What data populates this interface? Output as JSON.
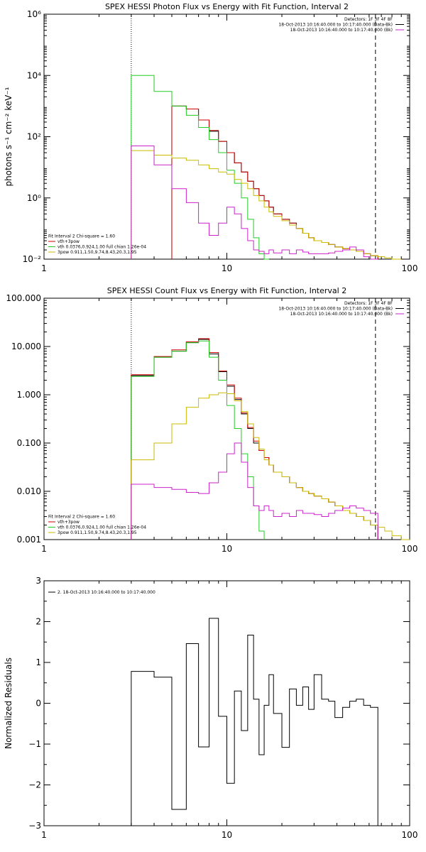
{
  "colors": {
    "black": "#000000",
    "red": "#cc0000",
    "green": "#22cc22",
    "yellow": "#ccbb00",
    "magenta": "#cc22cc"
  },
  "chart_data": [
    {
      "type": "line",
      "id": "photon",
      "title": "SPEX HESSI Photon Flux vs Energy with Fit Function, Interval 2",
      "xlabel": "",
      "ylabel": "photons s⁻¹ cm⁻² keV⁻¹",
      "xscale": "log",
      "yscale": "log",
      "xlim": [
        1,
        100
      ],
      "ylim": [
        0.01,
        1000000
      ],
      "xticks": [
        {
          "v": 1,
          "label": "1"
        },
        {
          "v": 10,
          "label": "10"
        },
        {
          "v": 100,
          "label": "100"
        }
      ],
      "yticks": [
        {
          "v": 0.01,
          "label": "10⁻²"
        },
        {
          "v": 1,
          "label": "10⁰"
        },
        {
          "v": 100,
          "label": "10²"
        },
        {
          "v": 10000,
          "label": "10⁴"
        },
        {
          "v": 1000000,
          "label": "10⁶"
        }
      ],
      "vlines": [
        {
          "x": 3,
          "style": "dotted"
        },
        {
          "x": 65,
          "style": "dashed"
        }
      ],
      "info_top_right": [
        {
          "text": "Detectors: 1F 3F 4F 8F",
          "color": "black"
        },
        {
          "text": "18-Oct-2013 10:16:40.000 to 10:17:40.000 (Data-Bk)",
          "color": "black"
        },
        {
          "text": "18-Oct-2013 10:16:40.000 to 10:17:40.000 (Bk)",
          "color": "magenta"
        }
      ],
      "legend": [
        {
          "text": "Fit Interval 2   Chi-square = 1.60",
          "color": "black"
        },
        {
          "text": "vth+3pow",
          "color": "red"
        },
        {
          "text": "vth 0.0376,0.924,1.00  full chian 1.26e-04",
          "color": "green"
        },
        {
          "text": "3pow 0.911,1.50,9.74,8.43,20.3,1.95",
          "color": "yellow"
        }
      ],
      "edges": [
        3,
        4,
        5,
        6,
        7,
        8,
        9,
        10,
        11,
        12,
        13,
        14,
        15,
        16,
        17,
        18,
        20,
        22,
        24,
        26,
        28,
        30,
        33,
        36,
        39,
        43,
        47,
        51,
        56,
        61,
        67,
        73,
        80,
        90,
        100
      ],
      "series": [
        {
          "name": "",
          "color": "black",
          "values": [
            null,
            null,
            1000,
            800,
            350,
            150,
            70,
            30,
            14,
            7,
            3.5,
            2,
            1.2,
            0.8,
            0.5,
            0.3,
            0.2,
            0.15,
            0.1,
            0.07,
            0.05,
            0.04,
            0.035,
            0.03,
            0.025,
            0.022,
            0.02,
            0.018,
            0.015,
            0.013,
            null,
            null,
            null,
            null
          ]
        },
        {
          "name": "",
          "color": "red",
          "values": [
            null,
            null,
            1000,
            800,
            350,
            160,
            70,
            30,
            14,
            7,
            3.5,
            2,
            1.2,
            0.8,
            0.5,
            0.3,
            0.2,
            0.15,
            0.1,
            0.07,
            0.05,
            0.04,
            0.035,
            0.03,
            0.025,
            0.022,
            0.02,
            0.018,
            0.015,
            0.013,
            null,
            null,
            null,
            null
          ]
        },
        {
          "name": "",
          "color": "green",
          "values": [
            10000,
            3000,
            1000,
            500,
            200,
            80,
            30,
            8,
            3,
            1,
            0.2,
            0.05,
            0.015,
            0.004,
            null,
            null,
            null,
            null,
            null,
            null,
            null,
            null,
            null,
            null,
            null,
            null,
            null,
            null,
            null,
            null,
            null,
            null,
            null,
            null
          ]
        },
        {
          "name": "",
          "color": "yellow",
          "values": [
            35,
            25,
            20,
            17,
            12,
            9,
            7,
            6,
            4,
            3,
            2,
            1.2,
            0.8,
            0.5,
            0.35,
            0.25,
            0.18,
            0.13,
            0.1,
            0.07,
            0.05,
            0.04,
            0.035,
            0.03,
            0.025,
            0.022,
            0.02,
            0.018,
            0.015,
            0.013,
            0.012,
            0.011,
            0.01,
            null
          ]
        },
        {
          "name": "",
          "color": "magenta",
          "values": [
            50,
            12,
            2,
            0.7,
            0.15,
            0.06,
            0.15,
            0.5,
            0.3,
            0.1,
            0.04,
            0.02,
            0.018,
            0.015,
            0.02,
            0.016,
            0.02,
            0.015,
            0.02,
            0.017,
            0.015,
            0.015,
            0.015,
            0.016,
            0.018,
            0.02,
            0.025,
            0.02,
            0.012,
            0.01,
            null,
            null,
            null,
            null
          ]
        }
      ]
    },
    {
      "type": "line",
      "id": "count",
      "title": "SPEX HESSI Count Flux vs Energy with Fit Function, Interval 2",
      "xlabel": "",
      "ylabel": "",
      "xscale": "log",
      "yscale": "log",
      "xlim": [
        1,
        100
      ],
      "ylim": [
        0.001,
        100
      ],
      "xticks": [
        {
          "v": 1,
          "label": "1"
        },
        {
          "v": 10,
          "label": "10"
        },
        {
          "v": 100,
          "label": "100"
        }
      ],
      "yticks": [
        {
          "v": 0.001,
          "label": "0.001"
        },
        {
          "v": 0.01,
          "label": "0.010"
        },
        {
          "v": 0.1,
          "label": "0.100"
        },
        {
          "v": 1,
          "label": "1.000"
        },
        {
          "v": 10,
          "label": "10.000"
        },
        {
          "v": 100,
          "label": "100.000"
        }
      ],
      "vlines": [
        {
          "x": 3,
          "style": "dotted"
        },
        {
          "x": 65,
          "style": "dashed"
        }
      ],
      "info_top_right": [
        {
          "text": "Detectors: 1F 3F 4F 8F",
          "color": "black"
        },
        {
          "text": "18-Oct-2013 10:16:40.000 to 10:17:40.000 (Data-Bk)",
          "color": "black"
        },
        {
          "text": "18-Oct-2013 10:16:40.000 to 10:17:40.000 (Bk)",
          "color": "magenta"
        }
      ],
      "legend": [
        {
          "text": "Fit Interval 2   Chi-square = 1.60",
          "color": "black"
        },
        {
          "text": "vth+3pow",
          "color": "red"
        },
        {
          "text": "vth 0.0376,0.924,1.00  full chian 1.26e-04",
          "color": "green"
        },
        {
          "text": "3pow 0.911,1.50,9.74,8.43,20.3,1.95",
          "color": "yellow"
        }
      ],
      "edges": [
        3,
        4,
        5,
        6,
        7,
        8,
        9,
        10,
        11,
        12,
        13,
        14,
        15,
        16,
        17,
        18,
        20,
        22,
        24,
        26,
        28,
        30,
        33,
        36,
        39,
        43,
        47,
        51,
        56,
        61,
        67,
        73,
        80,
        90,
        100
      ],
      "series": [
        {
          "name": "",
          "color": "black",
          "values": [
            2.5,
            6,
            8,
            12,
            14,
            7,
            3,
            1.5,
            0.8,
            0.4,
            0.2,
            0.1,
            0.07,
            0.05,
            0.035,
            0.025,
            0.02,
            0.015,
            0.012,
            0.01,
            0.009,
            0.008,
            0.007,
            0.006,
            0.005,
            0.004,
            0.0035,
            0.003,
            0.0025,
            0.002,
            null,
            null,
            null,
            null
          ]
        },
        {
          "name": "",
          "color": "red",
          "values": [
            2.6,
            6.2,
            8.5,
            12.5,
            14.5,
            7.5,
            3.1,
            1.6,
            0.85,
            0.42,
            0.21,
            0.11,
            0.07,
            0.05,
            0.035,
            0.025,
            0.02,
            0.015,
            0.012,
            0.01,
            0.009,
            0.008,
            0.007,
            0.006,
            0.005,
            0.004,
            0.0035,
            0.003,
            0.0025,
            0.002,
            null,
            null,
            null,
            null
          ]
        },
        {
          "name": "",
          "color": "green",
          "values": [
            2.4,
            6,
            8,
            12,
            13,
            6,
            2,
            0.6,
            0.2,
            0.06,
            0.02,
            0.005,
            0.0015,
            null,
            null,
            null,
            null,
            null,
            null,
            null,
            null,
            null,
            null,
            null,
            null,
            null,
            null,
            null,
            null,
            null,
            null,
            null,
            null,
            null
          ]
        },
        {
          "name": "",
          "color": "yellow",
          "values": [
            0.045,
            0.1,
            0.25,
            0.55,
            0.85,
            1,
            1.1,
            1.05,
            0.75,
            0.45,
            0.25,
            0.13,
            0.075,
            0.045,
            0.035,
            0.025,
            0.02,
            0.015,
            0.012,
            0.01,
            0.009,
            0.008,
            0.007,
            0.006,
            0.005,
            0.004,
            0.0035,
            0.003,
            0.0025,
            0.002,
            0.0018,
            0.0015,
            0.0012,
            0.001
          ]
        },
        {
          "name": "",
          "color": "magenta",
          "values": [
            0.014,
            0.012,
            0.011,
            0.0095,
            0.009,
            0.015,
            0.025,
            0.06,
            0.1,
            0.04,
            0.012,
            0.005,
            0.004,
            0.005,
            0.004,
            0.003,
            0.0035,
            0.003,
            0.004,
            0.0035,
            0.0035,
            0.0033,
            0.003,
            0.0035,
            0.004,
            0.0045,
            0.005,
            0.0045,
            0.004,
            0.0035,
            null,
            null,
            null,
            null
          ]
        }
      ]
    },
    {
      "type": "line",
      "id": "resid",
      "title": "",
      "xlabel": "",
      "ylabel": "Normalized Residuals",
      "xscale": "log",
      "yscale": "linear",
      "xlim": [
        1,
        100
      ],
      "ylim": [
        -3,
        3
      ],
      "xticks": [
        {
          "v": 1,
          "label": "1"
        },
        {
          "v": 10,
          "label": "10"
        },
        {
          "v": 100,
          "label": "100"
        }
      ],
      "yticks": [
        {
          "v": -3,
          "label": "−3"
        },
        {
          "v": -2,
          "label": "−2"
        },
        {
          "v": -1,
          "label": "−1"
        },
        {
          "v": 0,
          "label": "0"
        },
        {
          "v": 1,
          "label": "1"
        },
        {
          "v": 2,
          "label": "2"
        },
        {
          "v": 3,
          "label": "3"
        }
      ],
      "vlines": [],
      "info_top_right": [],
      "legend": [
        {
          "text": "2. 18-Oct-2013 10:16:40.000 to 10:17:40.000",
          "color": "black"
        }
      ],
      "edges": [
        3,
        4,
        5,
        6,
        7,
        8,
        9,
        10,
        11,
        12,
        13,
        14,
        15,
        16,
        17,
        18,
        20,
        22,
        24,
        26,
        28,
        30,
        33,
        36,
        39,
        43,
        47,
        51,
        56,
        61,
        67
      ],
      "series": [
        {
          "name": "",
          "color": "black",
          "values": [
            0.78,
            0.64,
            -2.6,
            1.46,
            -1.07,
            2.08,
            -0.32,
            -1.96,
            0.3,
            -0.67,
            1.67,
            0.1,
            -1.26,
            -0.05,
            0.7,
            -0.25,
            -1.08,
            0.35,
            -0.05,
            0.4,
            -0.15,
            0.7,
            0.1,
            0.05,
            -0.35,
            -0.1,
            0.05,
            0.1,
            -0.05,
            -0.1
          ]
        }
      ]
    }
  ]
}
